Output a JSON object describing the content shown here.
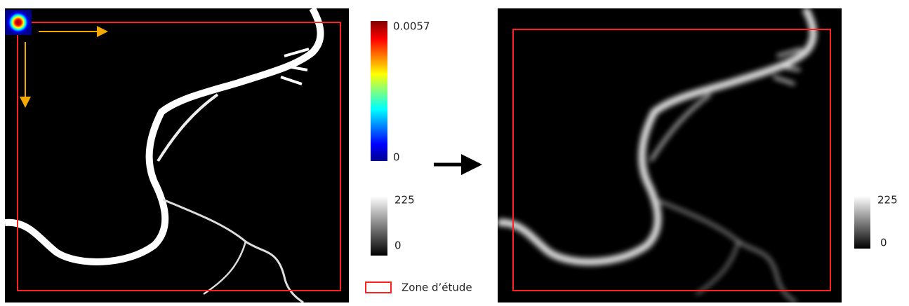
{
  "kernel_colorbar": {
    "max": "0.0057",
    "min": "0"
  },
  "input_colorbar": {
    "max": "225",
    "min": "0"
  },
  "output_colorbar": {
    "max": "225",
    "min": "0"
  },
  "legend": {
    "label": "Zone d’étude"
  }
}
